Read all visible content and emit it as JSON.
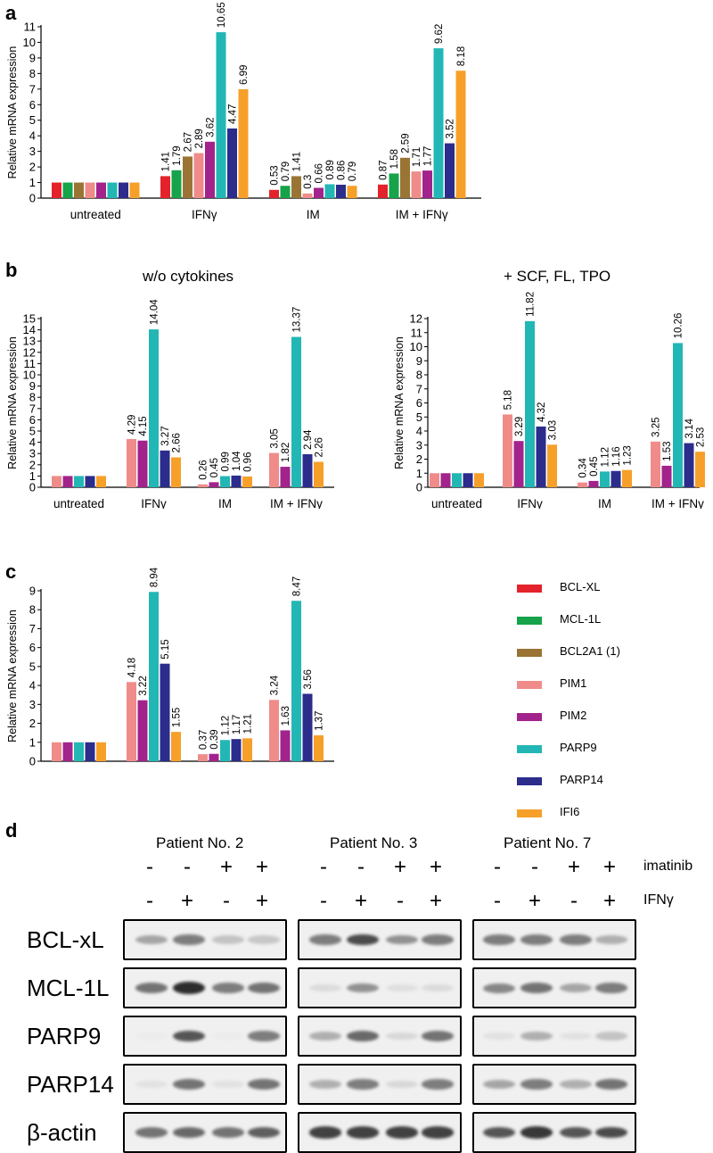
{
  "colors": {
    "BCL-XL": "#e3222b",
    "MCL-1L": "#16a34a",
    "BCL2A1 (1)": "#9a7434",
    "PIM1": "#ef8c89",
    "PIM2": "#a2238c",
    "PARP9": "#22b7b4",
    "PARP14": "#2b2c8c",
    "IFI6": "#f6a02a"
  },
  "panel_letters": {
    "a": "a",
    "b": "b",
    "c": "c",
    "d": "d"
  },
  "panel_b_titles": {
    "left": "w/o cytokines",
    "right": "+ SCF, FL, TPO"
  },
  "legend": [
    "BCL-XL",
    "MCL-1L",
    "BCL2A1 (1)",
    "PIM1",
    "PIM2",
    "PARP9",
    "PARP14",
    "IFI6"
  ],
  "chart_data": [
    {
      "id": "a",
      "type": "bar",
      "categories": [
        "untreated",
        "IFNγ",
        "IM",
        "IM + IFNγ"
      ],
      "ylabel": "Relative mRNA expression",
      "ylim": [
        0,
        11
      ],
      "yticks": [
        0,
        1,
        2,
        3,
        4,
        5,
        6,
        7,
        8,
        9,
        10,
        11
      ],
      "series": [
        {
          "name": "BCL-XL",
          "values": [
            1,
            1.41,
            0.53,
            0.87
          ]
        },
        {
          "name": "MCL-1L",
          "values": [
            1,
            1.79,
            0.79,
            1.58
          ]
        },
        {
          "name": "BCL2A1 (1)",
          "values": [
            1,
            2.67,
            1.41,
            2.59
          ]
        },
        {
          "name": "PIM1",
          "values": [
            1,
            2.89,
            0.3,
            1.71
          ]
        },
        {
          "name": "PIM2",
          "values": [
            1,
            3.62,
            0.66,
            1.77
          ]
        },
        {
          "name": "PARP9",
          "values": [
            1,
            10.65,
            0.89,
            9.62
          ]
        },
        {
          "name": "PARP14",
          "values": [
            1,
            4.47,
            0.86,
            3.52
          ]
        },
        {
          "name": "IFI6",
          "values": [
            1,
            6.99,
            0.79,
            8.18
          ]
        }
      ],
      "labels": [
        [
          "",
          "",
          "",
          "",
          "",
          "",
          "",
          ""
        ],
        [
          "1.41",
          "1.79",
          "2.67",
          "2.89",
          "3.62",
          "10.65",
          "4.47",
          "6.99"
        ],
        [
          "0.53",
          "0.79",
          "1.41",
          "0.3",
          "0.66",
          "0.89",
          "0.86",
          "0.79"
        ],
        [
          "0.87",
          "1.58",
          "2.59",
          "1.71",
          "1.77",
          "9.62",
          "3.52",
          "8.18"
        ]
      ]
    },
    {
      "id": "b-left",
      "type": "bar",
      "categories": [
        "untreated",
        "IFNγ",
        "IM",
        "IM + IFNγ"
      ],
      "ylabel": "Relative mRNA expression",
      "ylim": [
        0,
        15
      ],
      "yticks": [
        0,
        1,
        2,
        3,
        4,
        5,
        6,
        7,
        8,
        9,
        10,
        11,
        12,
        13,
        14,
        15
      ],
      "series": [
        {
          "name": "PIM1",
          "values": [
            1,
            4.29,
            0.26,
            3.05
          ]
        },
        {
          "name": "PIM2",
          "values": [
            1,
            4.15,
            0.45,
            1.82
          ]
        },
        {
          "name": "PARP9",
          "values": [
            1,
            14.04,
            0.99,
            13.37
          ]
        },
        {
          "name": "PARP14",
          "values": [
            1,
            3.27,
            1.04,
            2.94
          ]
        },
        {
          "name": "IFI6",
          "values": [
            1,
            2.66,
            0.96,
            2.26
          ]
        }
      ],
      "labels": [
        [
          "",
          "",
          "",
          "",
          ""
        ],
        [
          "4.29",
          "4.15",
          "14.04",
          "3.27",
          "2.66"
        ],
        [
          "0.26",
          "0.45",
          "0.99",
          "1.04",
          "0.96"
        ],
        [
          "3.05",
          "1.82",
          "13.37",
          "2.94",
          "2.26"
        ]
      ]
    },
    {
      "id": "b-right",
      "type": "bar",
      "categories": [
        "untreated",
        "IFNγ",
        "IM",
        "IM + IFNγ"
      ],
      "ylabel": "Relative mRNA expression",
      "ylim": [
        0,
        12
      ],
      "yticks": [
        0,
        1,
        2,
        3,
        4,
        5,
        6,
        7,
        8,
        9,
        10,
        11,
        12
      ],
      "series": [
        {
          "name": "PIM1",
          "values": [
            1,
            5.18,
            0.34,
            3.25
          ]
        },
        {
          "name": "PIM2",
          "values": [
            1,
            3.29,
            0.45,
            1.53
          ]
        },
        {
          "name": "PARP9",
          "values": [
            1,
            11.82,
            1.12,
            10.26
          ]
        },
        {
          "name": "PARP14",
          "values": [
            1,
            4.32,
            1.16,
            3.14
          ]
        },
        {
          "name": "IFI6",
          "values": [
            1,
            3.03,
            1.23,
            2.53
          ]
        }
      ],
      "labels": [
        [
          "",
          "",
          "",
          "",
          ""
        ],
        [
          "5.18",
          "3.29",
          "11.82",
          "4.32",
          "3.03"
        ],
        [
          "0.34",
          "0.45",
          "1.12",
          "1.16",
          "1.23"
        ],
        [
          "3.25",
          "1.53",
          "10.26",
          "3.14",
          "2.53"
        ]
      ]
    },
    {
      "id": "c",
      "type": "bar",
      "categories": [
        "untreated",
        "IFNγ",
        "IM",
        "IM + IFNγ"
      ],
      "ylabel": "Relative mRNA expression",
      "ylim": [
        0,
        9
      ],
      "yticks": [
        0,
        1,
        2,
        3,
        4,
        5,
        6,
        7,
        8,
        9
      ],
      "series": [
        {
          "name": "PIM1",
          "values": [
            1,
            4.18,
            0.37,
            3.24
          ]
        },
        {
          "name": "PIM2",
          "values": [
            1,
            3.22,
            0.39,
            1.63
          ]
        },
        {
          "name": "PARP9",
          "values": [
            1,
            8.94,
            1.12,
            8.47
          ]
        },
        {
          "name": "PARP14",
          "values": [
            1,
            5.15,
            1.17,
            3.56
          ]
        },
        {
          "name": "IFI6",
          "values": [
            1,
            1.55,
            1.21,
            1.37
          ]
        }
      ],
      "labels": [
        [
          "",
          "",
          "",
          "",
          ""
        ],
        [
          "4.18",
          "3.22",
          "8.94",
          "5.15",
          "1.55"
        ],
        [
          "0.37",
          "0.39",
          "1.12",
          "1.17",
          "1.21"
        ],
        [
          "3.24",
          "1.63",
          "8.47",
          "3.56",
          "1.37"
        ]
      ]
    }
  ],
  "western": {
    "patients": [
      "Patient No. 2",
      "Patient No. 3",
      "Patient No. 7"
    ],
    "imatinib_row": [
      "-",
      "-",
      "+",
      "+"
    ],
    "ifn_row": [
      "-",
      "+",
      "-",
      "+"
    ],
    "imatinib_label": "imatinib",
    "ifn_label": "IFNγ",
    "proteins": [
      "BCL-xL",
      "MCL-1L",
      "PARP9",
      "PARP14",
      "β-actin"
    ],
    "band_intensity": [
      [
        [
          0.35,
          0.55,
          0.2,
          0.18
        ],
        [
          0.55,
          0.8,
          0.45,
          0.55
        ],
        [
          0.55,
          0.55,
          0.55,
          0.3
        ]
      ],
      [
        [
          0.6,
          0.95,
          0.55,
          0.6
        ],
        [
          0.08,
          0.45,
          0.06,
          0.08
        ],
        [
          0.5,
          0.6,
          0.35,
          0.55
        ]
      ],
      [
        [
          0.0,
          0.75,
          0.0,
          0.55
        ],
        [
          0.3,
          0.65,
          0.1,
          0.6
        ],
        [
          0.05,
          0.3,
          0.05,
          0.2
        ]
      ],
      [
        [
          0.05,
          0.6,
          0.05,
          0.6
        ],
        [
          0.3,
          0.55,
          0.1,
          0.55
        ],
        [
          0.35,
          0.55,
          0.3,
          0.6
        ]
      ],
      [
        [
          0.6,
          0.65,
          0.6,
          0.7
        ],
        [
          0.85,
          0.85,
          0.85,
          0.85
        ],
        [
          0.75,
          0.9,
          0.75,
          0.8
        ]
      ]
    ]
  }
}
